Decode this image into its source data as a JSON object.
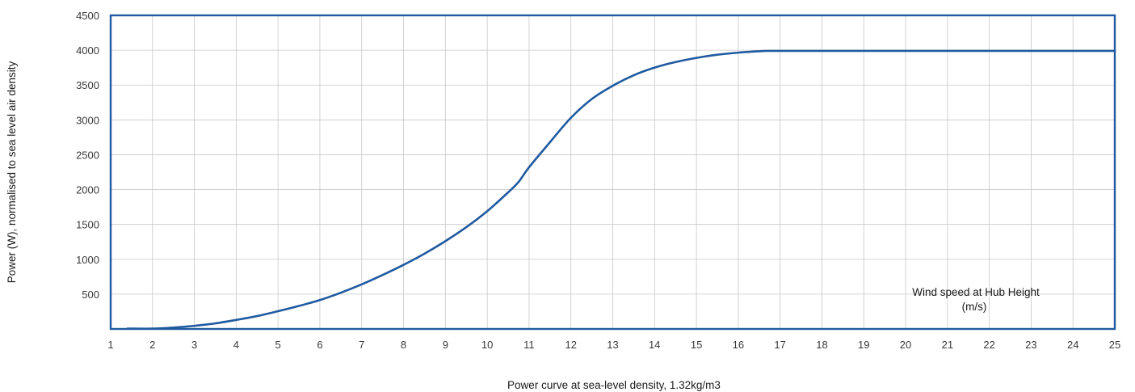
{
  "chart_data": {
    "type": "line",
    "title": "",
    "xlabel": "Power curve at sea-level density, 1.32kg/m3",
    "ylabel": "Power (W), normalised to sea level air density",
    "annotation": [
      "Wind speed at Hub Height",
      "(m/s)"
    ],
    "xlim": [
      1,
      25
    ],
    "ylim": [
      0,
      4500
    ],
    "x_ticks": [
      1,
      2,
      3,
      4,
      5,
      6,
      7,
      8,
      9,
      10,
      11,
      12,
      13,
      14,
      15,
      16,
      17,
      18,
      19,
      20,
      21,
      22,
      23,
      24,
      25
    ],
    "y_ticks": [
      500,
      1000,
      1500,
      2000,
      2500,
      3000,
      3500,
      4000,
      4500
    ],
    "grid": true,
    "colors": {
      "line": "#1f5aa0",
      "frame": "#1f5aa0",
      "grid": "#c8c8c8"
    },
    "series": [
      {
        "x": [
          1.4,
          2.0,
          2.5,
          3.0,
          3.5,
          4.0,
          4.5,
          5.0,
          5.5,
          6.0,
          6.5,
          7.0,
          7.5,
          8.0,
          8.5,
          9.0,
          9.5,
          10.0,
          10.5,
          10.75,
          11.0,
          11.5,
          12.0,
          12.5,
          13.0,
          13.5,
          14.0,
          14.5,
          15.0,
          15.5,
          16.0,
          16.5,
          16.7,
          17.0,
          18.0,
          19.0,
          20.0,
          21.0,
          22.0,
          23.0,
          24.0,
          25.0
        ],
        "values": [
          5,
          5,
          20,
          45,
          80,
          130,
          185,
          255,
          330,
          415,
          520,
          640,
          775,
          920,
          1080,
          1260,
          1460,
          1690,
          1960,
          2110,
          2320,
          2680,
          3030,
          3300,
          3490,
          3640,
          3750,
          3830,
          3890,
          3935,
          3965,
          3985,
          3990,
          3990,
          3990,
          3990,
          3990,
          3990,
          3990,
          3990,
          3990,
          3990
        ]
      }
    ]
  }
}
